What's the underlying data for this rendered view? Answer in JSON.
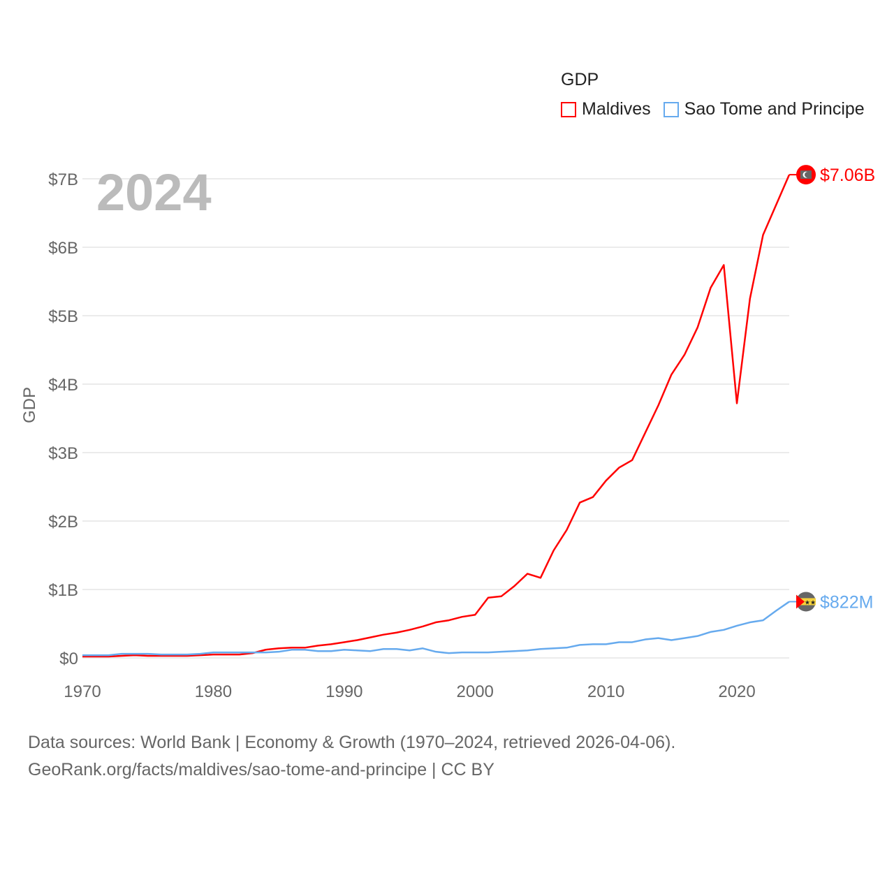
{
  "chart_data": {
    "type": "line",
    "title": "GDP",
    "ylabel": "GDP",
    "xlabel": "",
    "year_label": "2024",
    "xlim": [
      1970,
      2024
    ],
    "ylim": [
      0,
      7
    ],
    "x_ticks": [
      "1970",
      "1980",
      "1990",
      "2000",
      "2010",
      "2020"
    ],
    "y_ticks": [
      "$0",
      "$1B",
      "$2B",
      "$3B",
      "$4B",
      "$5B",
      "$6B",
      "$7B"
    ],
    "grid": true,
    "legend_placement": "top-right",
    "unit": "billion USD",
    "series": [
      {
        "name": "Maldives",
        "color": "#ff0000",
        "end_label": "$7.06B",
        "flag": "maldives-flag",
        "values": [
          0.02,
          0.02,
          0.02,
          0.03,
          0.04,
          0.03,
          0.03,
          0.03,
          0.03,
          0.04,
          0.05,
          0.05,
          0.05,
          0.07,
          0.12,
          0.14,
          0.15,
          0.15,
          0.18,
          0.2,
          0.23,
          0.26,
          0.3,
          0.34,
          0.37,
          0.41,
          0.46,
          0.52,
          0.55,
          0.6,
          0.63,
          0.88,
          0.9,
          1.05,
          1.23,
          1.17,
          1.57,
          1.87,
          2.27,
          2.35,
          2.59,
          2.78,
          2.89,
          3.29,
          3.69,
          4.14,
          4.43,
          4.83,
          5.41,
          5.74,
          3.72,
          5.25,
          6.18,
          6.62,
          7.06
        ]
      },
      {
        "name": "Sao Tome and Principe",
        "color": "#66aaee",
        "end_label": "$822M",
        "flag": "sao-tome-flag",
        "values": [
          0.04,
          0.04,
          0.04,
          0.06,
          0.06,
          0.06,
          0.05,
          0.05,
          0.05,
          0.06,
          0.08,
          0.08,
          0.08,
          0.08,
          0.08,
          0.09,
          0.12,
          0.12,
          0.1,
          0.1,
          0.12,
          0.11,
          0.1,
          0.13,
          0.13,
          0.11,
          0.14,
          0.09,
          0.07,
          0.08,
          0.08,
          0.08,
          0.09,
          0.1,
          0.11,
          0.13,
          0.14,
          0.15,
          0.19,
          0.2,
          0.2,
          0.23,
          0.23,
          0.27,
          0.29,
          0.26,
          0.29,
          0.32,
          0.38,
          0.41,
          0.47,
          0.52,
          0.55,
          0.69,
          0.822
        ]
      }
    ]
  },
  "footer": {
    "line1": "Data sources: World Bank | Economy & Growth (1970–2024, retrieved 2026-04-06).",
    "line2": "GeoRank.org/facts/maldives/sao-tome-and-principe | CC BY"
  }
}
